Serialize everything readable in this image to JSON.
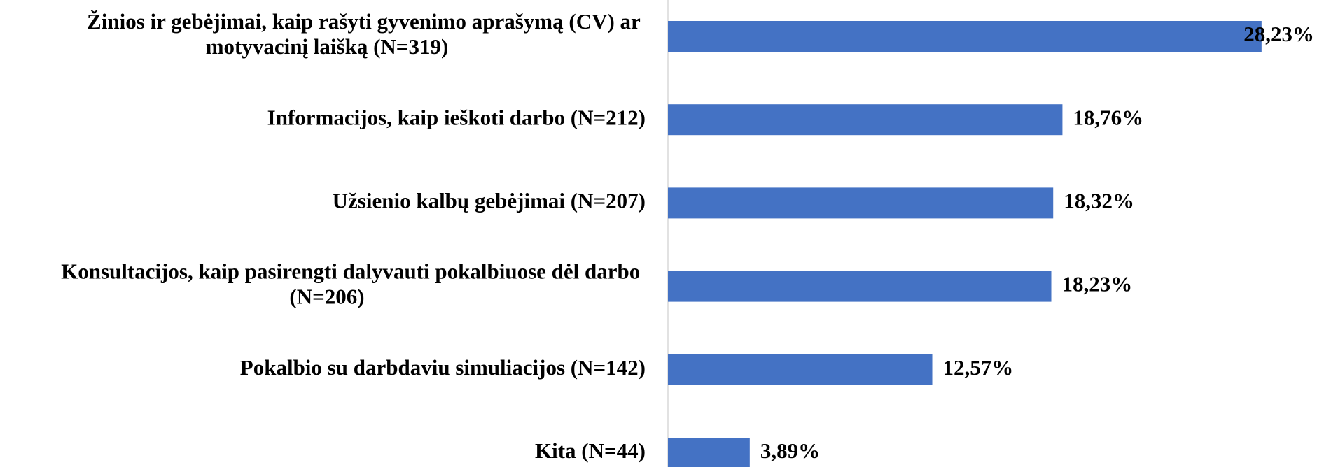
{
  "chart_data": {
    "type": "bar",
    "orientation": "horizontal",
    "categories": [
      "Žinios ir gebėjimai, kaip rašyti gyvenimo aprašymą (CV) ar motyvacinį laišką (N=319)",
      "Informacijos, kaip ieškoti darbo (N=212)",
      "Užsienio kalbų gebėjimai (N=207)",
      "Konsultacijos, kaip pasirengti dalyvauti pokalbiuose dėl darbo (N=206)",
      "Pokalbio su darbdaviu simuliacijos (N=142)",
      "Kita (N=44)"
    ],
    "values": [
      28.23,
      18.76,
      18.32,
      18.23,
      12.57,
      3.89
    ],
    "value_labels": [
      "28,23%",
      "18,76%",
      "18,32%",
      "18,23%",
      "12,57%",
      "3,89%"
    ],
    "color": "#4472c4",
    "xlim": [
      0,
      30
    ]
  }
}
